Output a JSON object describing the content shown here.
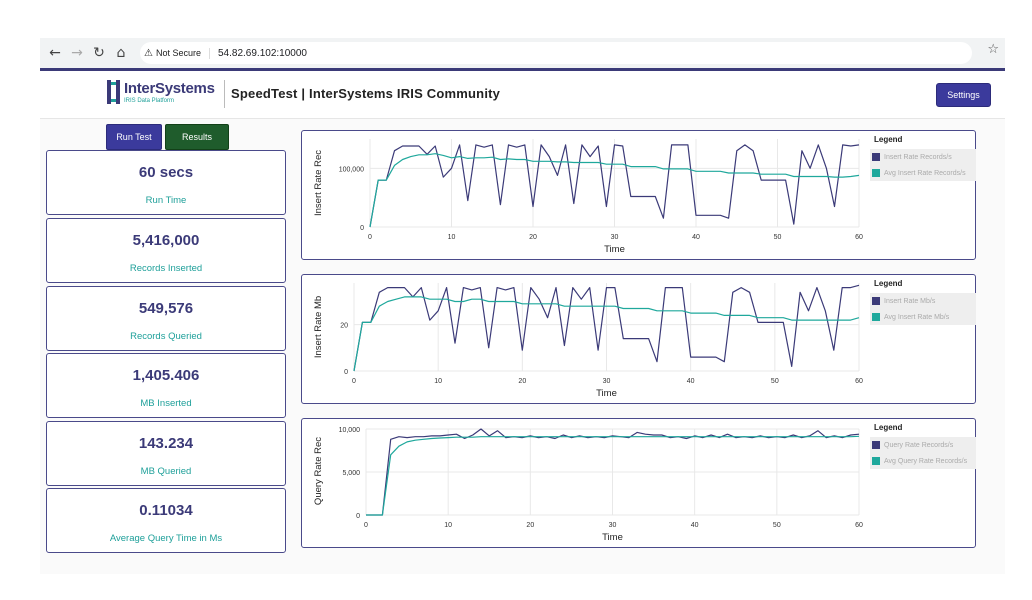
{
  "browser": {
    "security_label": "Not Secure",
    "url": "54.82.69.102:10000"
  },
  "header": {
    "logo_name": "InterSystems",
    "logo_tagline": "IRIS Data Platform",
    "title": "SpeedTest | InterSystems IRIS Community",
    "settings_label": "Settings"
  },
  "actions": {
    "run_test_label": "Run Test",
    "results_label": "Results"
  },
  "metrics": [
    {
      "value": "60 secs",
      "label": "Run Time"
    },
    {
      "value": "5,416,000",
      "label": "Records Inserted"
    },
    {
      "value": "549,576",
      "label": "Records Queried"
    },
    {
      "value": "1,405.406",
      "label": "MB Inserted"
    },
    {
      "value": "143.234",
      "label": "MB Queried"
    },
    {
      "value": "0.11034",
      "label": "Average Query Time in Ms"
    }
  ],
  "colors": {
    "series_primary": "#3b3a78",
    "series_avg": "#1fa89c",
    "accent": "#3b3a9c"
  },
  "chart_data": [
    {
      "type": "line",
      "ylabel": "Insert Rate Rec",
      "xlabel": "Time",
      "legend_title": "Legend",
      "legend_position": "right",
      "xlim": [
        0,
        60
      ],
      "ylim": [
        0,
        150000
      ],
      "x_ticks": [
        0,
        10,
        20,
        30,
        40,
        50,
        60
      ],
      "y_ticks": [
        0,
        100000
      ],
      "y_tick_labels": [
        "0",
        "100,000"
      ],
      "x": [
        0,
        1,
        2,
        3,
        4,
        5,
        6,
        7,
        8,
        9,
        10,
        11,
        12,
        13,
        14,
        15,
        16,
        17,
        18,
        19,
        20,
        21,
        22,
        23,
        24,
        25,
        26,
        27,
        28,
        29,
        30,
        31,
        32,
        33,
        34,
        35,
        36,
        37,
        38,
        39,
        40,
        41,
        42,
        43,
        44,
        45,
        46,
        47,
        48,
        49,
        50,
        51,
        52,
        53,
        54,
        55,
        56,
        57,
        58,
        59,
        60
      ],
      "series": [
        {
          "name": "Insert Rate Records/s",
          "values": [
            0,
            80000,
            80000,
            130000,
            138000,
            138000,
            138000,
            124000,
            138000,
            85000,
            100000,
            140000,
            45000,
            140000,
            136000,
            140000,
            38000,
            140000,
            136000,
            140000,
            35000,
            140000,
            120000,
            88000,
            140000,
            40000,
            140000,
            120000,
            138000,
            35000,
            140000,
            138000,
            52000,
            52000,
            52000,
            52000,
            15000,
            140000,
            140000,
            140000,
            20000,
            20000,
            20000,
            20000,
            15000,
            130000,
            140000,
            130000,
            80000,
            80000,
            80000,
            80000,
            5000,
            130000,
            100000,
            140000,
            100000,
            35000,
            140000,
            138000,
            140000
          ]
        },
        {
          "name": "Avg Insert Rate Records/s",
          "values": [
            0,
            80000,
            80000,
            105000,
            115000,
            120000,
            123000,
            123000,
            125000,
            122000,
            118000,
            120000,
            117000,
            118000,
            118000,
            119000,
            115000,
            116000,
            115000,
            115000,
            112000,
            112000,
            112000,
            111000,
            111000,
            110000,
            110000,
            110000,
            110000,
            107000,
            107000,
            107000,
            103000,
            103000,
            103000,
            103000,
            99000,
            99000,
            99000,
            99000,
            95000,
            95000,
            95000,
            95000,
            92000,
            92000,
            92000,
            92000,
            90000,
            90000,
            90000,
            90000,
            86000,
            86000,
            86000,
            86000,
            86000,
            85000,
            85000,
            86000,
            88000
          ]
        }
      ]
    },
    {
      "type": "line",
      "ylabel": "Insert Rate Mb",
      "xlabel": "Time",
      "legend_title": "Legend",
      "legend_position": "right",
      "xlim": [
        0,
        60
      ],
      "ylim": [
        0,
        38
      ],
      "x_ticks": [
        0,
        10,
        20,
        30,
        40,
        50,
        60
      ],
      "y_ticks": [
        0,
        20
      ],
      "y_tick_labels": [
        "0",
        "20"
      ],
      "x": [
        0,
        1,
        2,
        3,
        4,
        5,
        6,
        7,
        8,
        9,
        10,
        11,
        12,
        13,
        14,
        15,
        16,
        17,
        18,
        19,
        20,
        21,
        22,
        23,
        24,
        25,
        26,
        27,
        28,
        29,
        30,
        31,
        32,
        33,
        34,
        35,
        36,
        37,
        38,
        39,
        40,
        41,
        42,
        43,
        44,
        45,
        46,
        47,
        48,
        49,
        50,
        51,
        52,
        53,
        54,
        55,
        56,
        57,
        58,
        59,
        60
      ],
      "series": [
        {
          "name": "Insert Rate Mb/s",
          "values": [
            0,
            21,
            21,
            34,
            36,
            36,
            36,
            32,
            36,
            22,
            26,
            36,
            12,
            36,
            35,
            36,
            10,
            36,
            35,
            36,
            9,
            36,
            31,
            23,
            36,
            11,
            36,
            31,
            36,
            9,
            36,
            36,
            14,
            14,
            14,
            14,
            4,
            36,
            36,
            36,
            6,
            6,
            6,
            6,
            4,
            34,
            36,
            34,
            21,
            21,
            21,
            21,
            2,
            34,
            26,
            36,
            26,
            9,
            36,
            36,
            37
          ]
        },
        {
          "name": "Avg Insert Rate Mb/s",
          "values": [
            0,
            21,
            21,
            28,
            30,
            31,
            32,
            32,
            32,
            31,
            31,
            31,
            30,
            30,
            31,
            31,
            30,
            30,
            30,
            30,
            29,
            29,
            29,
            29,
            29,
            28,
            28,
            28,
            28,
            28,
            28,
            28,
            27,
            27,
            27,
            27,
            26,
            26,
            26,
            26,
            25,
            25,
            25,
            25,
            24,
            24,
            24,
            24,
            23,
            23,
            23,
            23,
            22,
            22,
            22,
            22,
            22,
            22,
            22,
            22,
            23
          ]
        }
      ]
    },
    {
      "type": "line",
      "ylabel": "Query Rate Rec",
      "xlabel": "Time",
      "legend_title": "Legend",
      "legend_position": "right",
      "xlim": [
        0,
        60
      ],
      "ylim": [
        0,
        10000
      ],
      "x_ticks": [
        0,
        10,
        20,
        30,
        40,
        50,
        60
      ],
      "y_ticks": [
        0,
        5000,
        10000
      ],
      "y_tick_labels": [
        "0",
        "5,000",
        "10,000"
      ],
      "x": [
        0,
        1,
        2,
        3,
        4,
        5,
        6,
        7,
        8,
        9,
        10,
        11,
        12,
        13,
        14,
        15,
        16,
        17,
        18,
        19,
        20,
        21,
        22,
        23,
        24,
        25,
        26,
        27,
        28,
        29,
        30,
        31,
        32,
        33,
        34,
        35,
        36,
        37,
        38,
        39,
        40,
        41,
        42,
        43,
        44,
        45,
        46,
        47,
        48,
        49,
        50,
        51,
        52,
        53,
        54,
        55,
        56,
        57,
        58,
        59,
        60
      ],
      "series": [
        {
          "name": "Query Rate Records/s",
          "values": [
            0,
            0,
            0,
            8800,
            9100,
            9000,
            9100,
            9100,
            9200,
            9200,
            9300,
            9400,
            8900,
            9300,
            10000,
            9200,
            9800,
            9000,
            9100,
            9000,
            9200,
            9000,
            9100,
            8900,
            9300,
            9000,
            9200,
            9000,
            9100,
            9000,
            9200,
            9100,
            9000,
            9600,
            9400,
            9300,
            9300,
            9000,
            9100,
            8900,
            9200,
            9000,
            9300,
            9000,
            9400,
            9000,
            9100,
            9000,
            9200,
            9000,
            9100,
            9000,
            9300,
            9000,
            9200,
            9800,
            9000,
            9200,
            9000,
            9300,
            9400
          ]
        },
        {
          "name": "Avg Query Rate Records/s",
          "values": [
            0,
            0,
            0,
            7000,
            8000,
            8500,
            8700,
            8800,
            8900,
            8950,
            9000,
            9050,
            9050,
            9050,
            9100,
            9100,
            9100,
            9100,
            9100,
            9100,
            9100,
            9100,
            9100,
            9100,
            9100,
            9100,
            9100,
            9100,
            9100,
            9100,
            9100,
            9100,
            9100,
            9100,
            9100,
            9100,
            9100,
            9100,
            9100,
            9100,
            9100,
            9100,
            9100,
            9100,
            9100,
            9100,
            9100,
            9100,
            9100,
            9100,
            9100,
            9100,
            9100,
            9100,
            9100,
            9100,
            9100,
            9100,
            9100,
            9100,
            9150
          ]
        }
      ]
    }
  ]
}
